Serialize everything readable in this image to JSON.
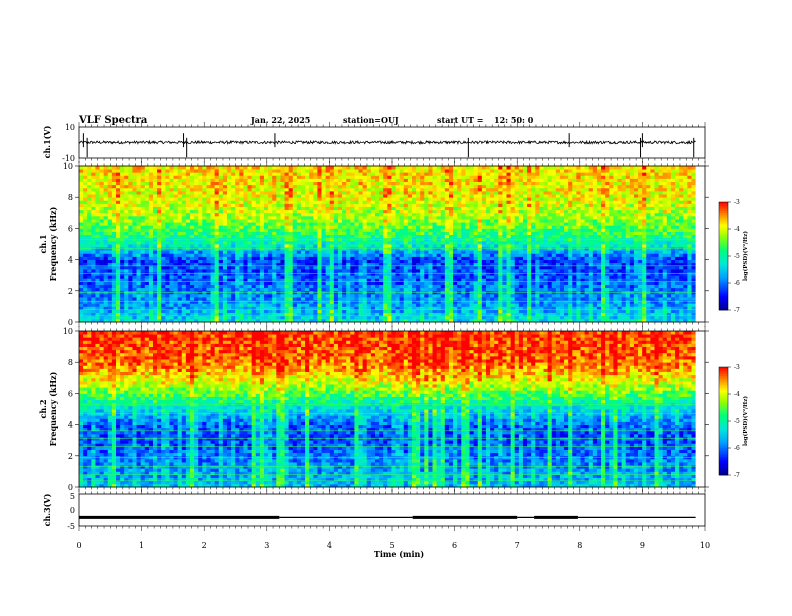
{
  "header": {
    "title": "VLF Spectra",
    "date": "Jan. 22, 2025",
    "station": "station=OUJ",
    "start_label": "start  UT  =",
    "start_time": "12: 50: 0"
  },
  "panels": {
    "ch1_waveform": {
      "label": "ch.1(V)",
      "y_max": "10",
      "y_min": "-10"
    },
    "ch1_spec": {
      "label_a": "ch.1",
      "label_b": "Frequency  (kHz)"
    },
    "ch2_spec": {
      "label_a": "ch.2",
      "label_b": "Frequency  (kHz)"
    },
    "ch3_waveform": {
      "label": "ch.3(V)",
      "y_max": "5",
      "y_mid": "0",
      "y_min": "-5"
    }
  },
  "x_axis": {
    "label": "Time  (min)",
    "ticks": [
      "0",
      "1",
      "2",
      "3",
      "4",
      "5",
      "6",
      "7",
      "8",
      "9",
      "10"
    ]
  },
  "freq_ticks": [
    "0",
    "2",
    "4",
    "6",
    "8",
    "10"
  ],
  "colorbar": {
    "label": "log(PSD)(V²/Hz)",
    "ticks": [
      "-3",
      "-4",
      "-5",
      "-6",
      "-7"
    ]
  },
  "colors": {
    "low": "#00008c",
    "mid_low": "#00a0ff",
    "mid": "#00ff80",
    "mid_high": "#ffff00",
    "high": "#ff0000"
  },
  "chart_data": [
    {
      "type": "line",
      "title": "ch.1(V)",
      "xlabel": "Time (min)",
      "ylabel": "ch.1(V)",
      "xlim": [
        0,
        10
      ],
      "ylim": [
        -10,
        10
      ],
      "description_values": {
        "baseline_V": 0,
        "typical_amplitude_V": 2,
        "spike_times_min": [
          0.07,
          0.13,
          1.67,
          1.72,
          3.13,
          6.22,
          7.83,
          8.97,
          9.0,
          9.82
        ]
      }
    },
    {
      "type": "heatmap",
      "title": "ch.1",
      "xlabel": "Time (min)",
      "ylabel": "Frequency (kHz)",
      "xlim": [
        0,
        9.85
      ],
      "ylim": [
        0,
        10
      ],
      "zlabel": "log(PSD)(V²/Hz)",
      "zlim": [
        -7,
        -3
      ],
      "freq_bins_kHz": [
        0,
        1,
        2,
        3,
        4,
        5,
        6,
        7,
        8,
        9,
        10
      ],
      "typical_log_psd": [
        -5.4,
        -5.8,
        -6.0,
        -6.2,
        -6.3,
        -5.2,
        -4.6,
        -4.2,
        -4.0,
        -3.9,
        -3.8
      ]
    },
    {
      "type": "heatmap",
      "title": "ch.2",
      "xlabel": "Time (min)",
      "ylabel": "Frequency (kHz)",
      "xlim": [
        0,
        9.85
      ],
      "ylim": [
        0,
        10
      ],
      "zlabel": "log(PSD)(V²/Hz)",
      "zlim": [
        -7,
        -3
      ],
      "freq_bins_kHz": [
        0,
        1,
        2,
        3,
        4,
        5,
        6,
        7,
        8,
        9,
        10
      ],
      "typical_log_psd": [
        -5.6,
        -5.8,
        -6.0,
        -6.2,
        -6.1,
        -5.4,
        -4.6,
        -3.9,
        -3.4,
        -3.3,
        -3.2
      ]
    },
    {
      "type": "line",
      "title": "ch.3(V)",
      "xlabel": "Time (min)",
      "ylabel": "ch.3(V)",
      "xlim": [
        0,
        10
      ],
      "ylim": [
        -5,
        5
      ],
      "segments": [
        {
          "from_min": 0.0,
          "to_min": 3.2,
          "value_V": -2.3,
          "style": "thick"
        },
        {
          "from_min": 3.2,
          "to_min": 5.33,
          "value_V": -2.3,
          "style": "thin"
        },
        {
          "from_min": 5.33,
          "to_min": 7.0,
          "value_V": -2.3,
          "style": "thick"
        },
        {
          "from_min": 7.0,
          "to_min": 7.27,
          "value_V": -2.3,
          "style": "thin"
        },
        {
          "from_min": 7.27,
          "to_min": 7.97,
          "value_V": -2.3,
          "style": "thick"
        },
        {
          "from_min": 7.97,
          "to_min": 9.85,
          "value_V": -2.3,
          "style": "thin"
        }
      ]
    }
  ]
}
